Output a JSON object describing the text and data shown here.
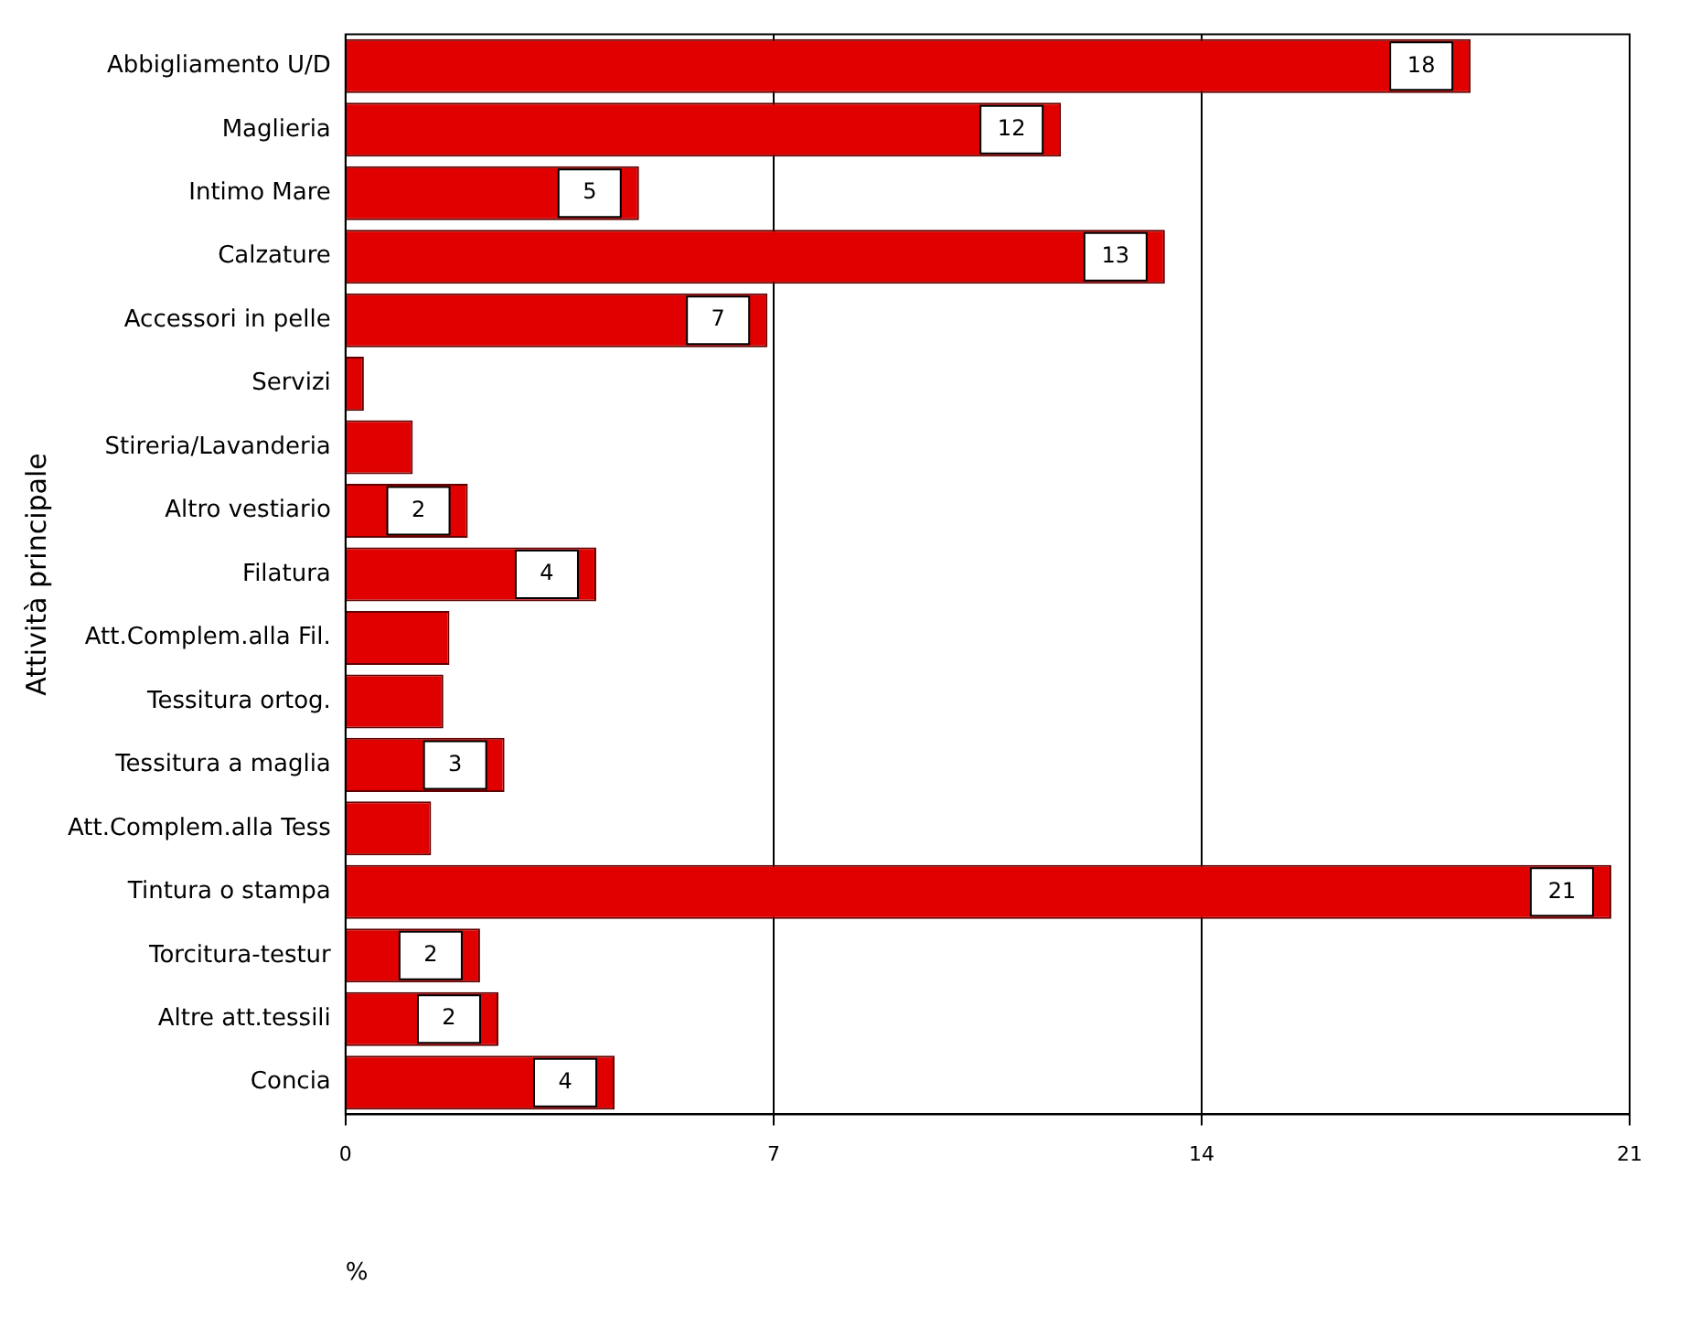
{
  "chart_data": {
    "type": "bar",
    "orientation": "horizontal",
    "xlabel": "%",
    "ylabel": "Attività principale",
    "categories": [
      "Abbigliamento U/D",
      "Maglieria",
      "Intimo Mare",
      "Calzature",
      "Accessori in pelle",
      "Servizi",
      "Stireria/Lavanderia",
      "Altro vestiario",
      "Filatura",
      "Att.Complem.alla Fil.",
      "Tessitura ortog.",
      "Tessitura a maglia",
      "Att.Complem.alla Tess",
      "Tintura o stampa",
      "Torcitura-testur",
      "Altre att.tessili",
      "Concia"
    ],
    "values": [
      18.4,
      11.7,
      4.8,
      13.4,
      6.9,
      0.3,
      1.1,
      2.0,
      4.1,
      1.7,
      1.6,
      2.6,
      1.4,
      20.7,
      2.2,
      2.5,
      4.4
    ],
    "value_labels": [
      "18",
      "12",
      "5",
      "13",
      "7",
      null,
      null,
      "2",
      "4",
      null,
      null,
      "3",
      null,
      "21",
      "2",
      "2",
      "4"
    ],
    "color": "#e00000",
    "xlim": [
      0,
      21
    ],
    "xticks": [
      0,
      7,
      14,
      21
    ],
    "grid": "x",
    "legend": false
  }
}
